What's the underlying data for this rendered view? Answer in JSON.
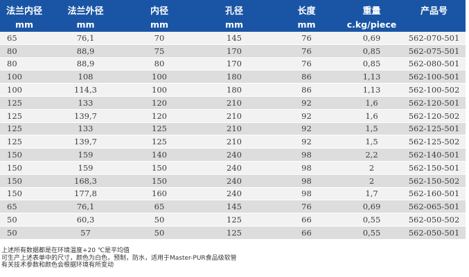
{
  "table": {
    "headers": [
      {
        "zh": "法兰内径",
        "unit": "mm"
      },
      {
        "zh": "法兰外径",
        "unit": "mm"
      },
      {
        "zh": "内径",
        "unit": "mm"
      },
      {
        "zh": "孔径",
        "unit": "mm"
      },
      {
        "zh": "长度",
        "unit": "mm"
      },
      {
        "zh": "重量",
        "unit": "c.kg/piece"
      },
      {
        "zh": "产品号",
        "unit": ""
      }
    ],
    "rows": [
      [
        "65",
        "76,1",
        "70",
        "145",
        "76",
        "0,69",
        "562-070-501"
      ],
      [
        "80",
        "88,9",
        "75",
        "170",
        "76",
        "0,85",
        "562-075-501"
      ],
      [
        "80",
        "88,9",
        "80",
        "170",
        "76",
        "0,85",
        "562-080-501"
      ],
      [
        "100",
        "108",
        "100",
        "180",
        "86",
        "1,13",
        "562-100-501"
      ],
      [
        "100",
        "114,3",
        "100",
        "180",
        "86",
        "1,13",
        "562-100-502"
      ],
      [
        "125",
        "133",
        "120",
        "210",
        "92",
        "1,6",
        "562-120-501"
      ],
      [
        "125",
        "139,7",
        "120",
        "210",
        "92",
        "1,6",
        "562-120-502"
      ],
      [
        "125",
        "133",
        "125",
        "210",
        "92",
        "1,5",
        "562-125-501"
      ],
      [
        "125",
        "139,7",
        "125",
        "210",
        "92",
        "1,5",
        "562-125-502"
      ],
      [
        "150",
        "159",
        "140",
        "240",
        "98",
        "2,2",
        "562-140-501"
      ],
      [
        "150",
        "159",
        "150",
        "240",
        "98",
        "2",
        "562-150-501"
      ],
      [
        "150",
        "168,3",
        "150",
        "240",
        "98",
        "2",
        "562-150-502"
      ],
      [
        "150",
        "177,8",
        "160",
        "240",
        "98",
        "1,7",
        "562-160-501"
      ],
      [
        "65",
        "76,1",
        "65",
        "145",
        "76",
        "0,69",
        "562-065-501"
      ],
      [
        "50",
        "60,3",
        "50",
        "125",
        "66",
        "0,55",
        "562-050-502"
      ],
      [
        "50",
        "57",
        "50",
        "125",
        "66",
        "0,55",
        "562-050-501"
      ]
    ]
  },
  "notes": [
    "上述所有数据都是在环境温度+20 ℃是平均值",
    "可生产上述表单中的尺寸，颜色为白色，预制，防水，适用于Master-PUR食品级软管",
    "有关技术参数和颜色会根据环境有所变动"
  ]
}
